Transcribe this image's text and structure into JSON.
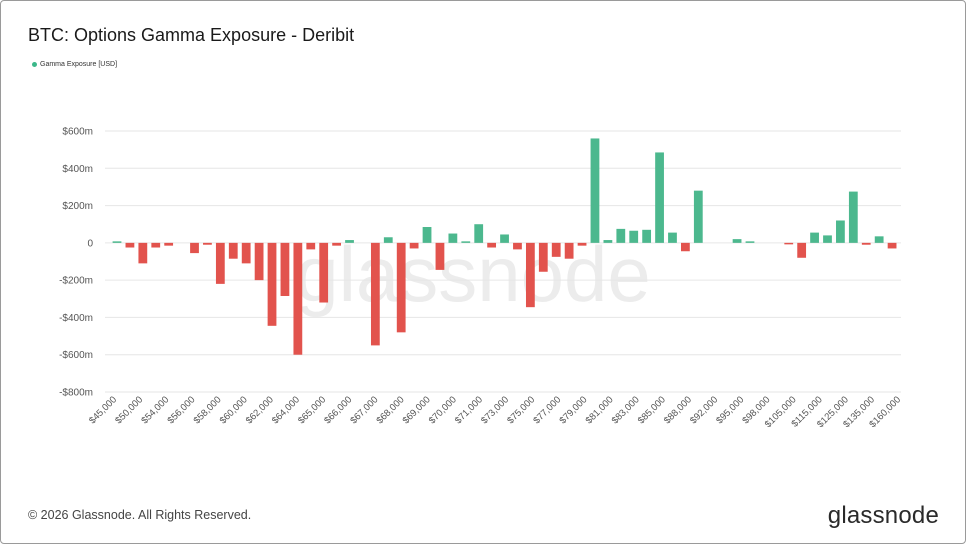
{
  "title": "BTC: Options Gamma Exposure - Deribit",
  "legend": {
    "label": "Gamma Exposure [USD]",
    "color": "#3bb88a"
  },
  "footer": {
    "copyright": "© 2026 Glassnode. All Rights Reserved.",
    "brand": "glassnode"
  },
  "watermark": "glassnode",
  "colors": {
    "positive": "#4cb88e",
    "negative": "#e2534d",
    "grid": "#e6e6e6",
    "axis_text": "#555555",
    "watermark": "#ececec"
  },
  "chart_data": {
    "type": "bar",
    "series": [
      {
        "name": "Gamma Exposure [USD]"
      }
    ],
    "ylim": [
      -800,
      600
    ],
    "yticks": [
      600,
      400,
      200,
      0,
      -200,
      -400,
      -600,
      -800
    ],
    "ytick_labels": [
      "$600m",
      "$400m",
      "$200m",
      "0",
      "-$200m",
      "-$400m",
      "-$600m",
      "-$800m"
    ],
    "x_tick_labels": [
      "$45,000",
      "$50,000",
      "$54,000",
      "$56,000",
      "$58,000",
      "$60,000",
      "$62,000",
      "$64,000",
      "$65,000",
      "$66,000",
      "$67,000",
      "$68,000",
      "$69,000",
      "$70,000",
      "$71,000",
      "$73,000",
      "$75,000",
      "$77,000",
      "$79,000",
      "$81,000",
      "$83,000",
      "$85,000",
      "$88,000",
      "$92,000",
      "$95,000",
      "$98,000",
      "$105,000",
      "$115,000",
      "$125,000",
      "$135,000",
      "$160,000"
    ],
    "values": [
      5,
      -25,
      -110,
      -25,
      -15,
      0,
      -55,
      -10,
      -220,
      -85,
      -110,
      -200,
      -445,
      -285,
      -600,
      -35,
      -320,
      -15,
      15,
      0,
      -550,
      30,
      -480,
      -30,
      85,
      -145,
      50,
      5,
      100,
      -25,
      45,
      -35,
      -345,
      -155,
      -75,
      -85,
      -15,
      560,
      15,
      75,
      65,
      70,
      485,
      55,
      -45,
      280,
      0,
      0,
      20,
      5,
      0,
      0,
      -5,
      -80,
      55,
      40,
      120,
      275,
      -10,
      35,
      -30
    ]
  }
}
